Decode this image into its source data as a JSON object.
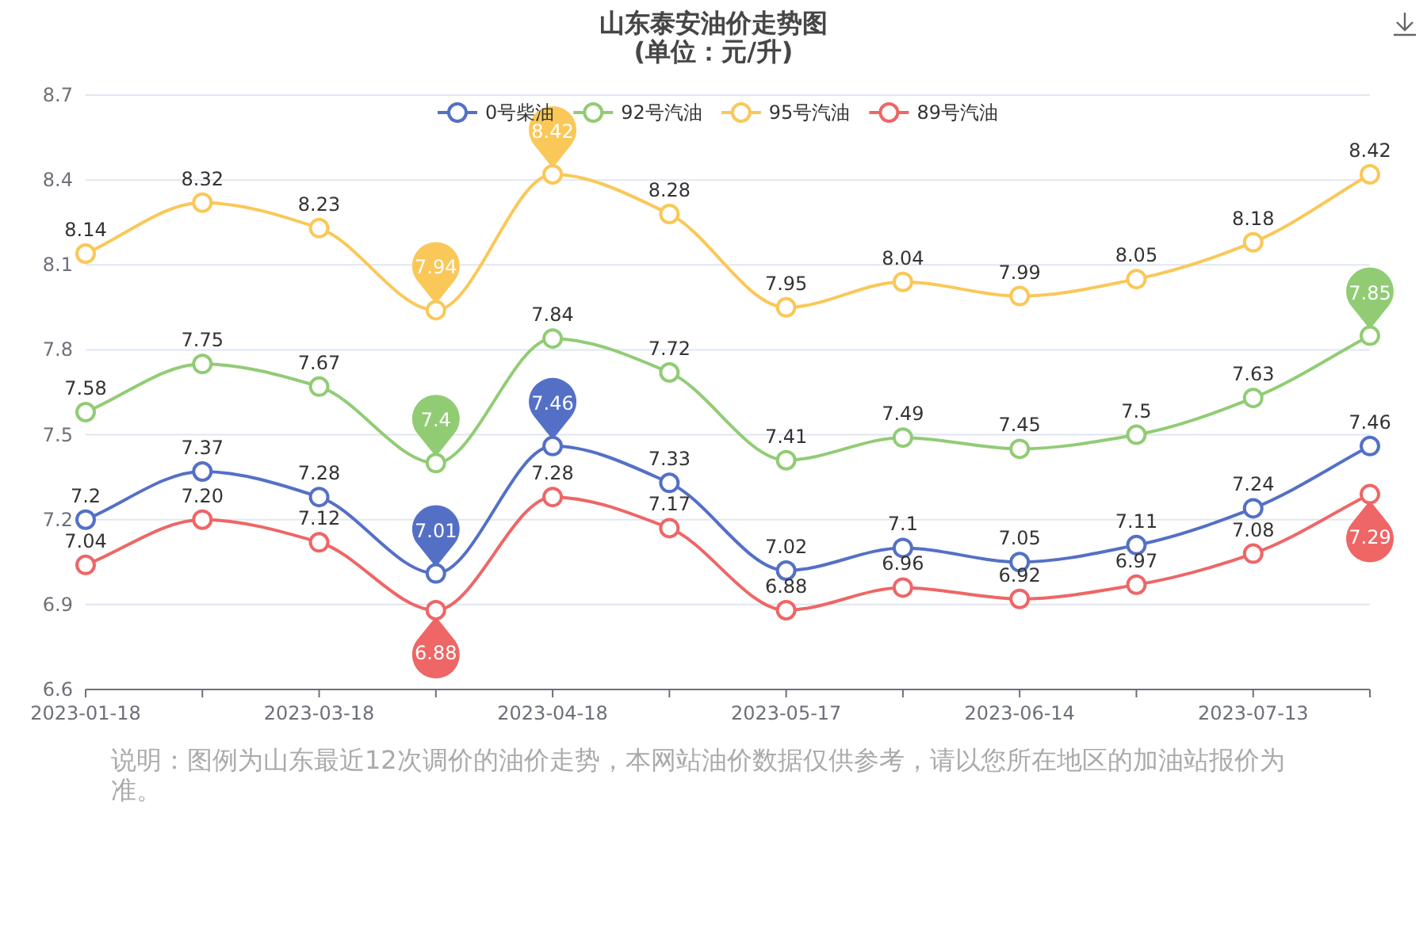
{
  "chart_data": {
    "type": "line",
    "title": "山东泰安油价走势图",
    "subtitle": "(单位：元/升)",
    "categories": [
      "2023-01-18",
      null,
      "2023-03-18",
      null,
      "2023-04-18",
      null,
      "2023-05-17",
      null,
      "2023-06-14",
      null,
      "2023-07-13",
      null
    ],
    "series": [
      {
        "name": "0号柴油",
        "color": "#5470c6",
        "values": [
          7.2,
          7.37,
          7.28,
          7.01,
          7.46,
          7.33,
          7.02,
          7.1,
          7.05,
          7.11,
          7.24,
          7.46
        ],
        "value_labels": [
          "7.2",
          "7.37",
          "7.28",
          null,
          null,
          "7.33",
          "7.02",
          "7.1",
          "7.05",
          "7.11",
          "7.24",
          "7.46"
        ]
      },
      {
        "name": "92号汽油",
        "color": "#91cc75",
        "values": [
          7.58,
          7.75,
          7.67,
          7.4,
          7.84,
          7.72,
          7.41,
          7.49,
          7.45,
          7.5,
          7.63,
          7.85
        ],
        "value_labels": [
          "7.58",
          "7.75",
          "7.67",
          null,
          "7.84",
          "7.72",
          "7.41",
          "7.49",
          "7.45",
          "7.5",
          "7.63",
          null
        ]
      },
      {
        "name": "95号汽油",
        "color": "#fac858",
        "values": [
          8.14,
          8.32,
          8.23,
          7.94,
          8.42,
          8.28,
          7.95,
          8.04,
          7.99,
          8.05,
          8.18,
          8.42
        ],
        "value_labels": [
          "8.14",
          "8.32",
          "8.23",
          null,
          null,
          "8.28",
          "7.95",
          "8.04",
          "7.99",
          "8.05",
          "8.18",
          "8.42"
        ]
      },
      {
        "name": "89号汽油",
        "color": "#ee6666",
        "values": [
          7.04,
          7.2,
          7.12,
          6.88,
          7.28,
          7.17,
          6.88,
          6.96,
          6.92,
          6.97,
          7.08,
          7.29
        ],
        "value_labels": [
          "7.04",
          "7.20",
          "7.12",
          null,
          "7.28",
          "7.17",
          "6.88",
          "6.96",
          "6.92",
          "6.97",
          "7.08",
          null
        ]
      }
    ],
    "ylim": [
      6.6,
      8.7
    ],
    "yticks": [
      6.6,
      6.9,
      7.2,
      7.5,
      7.8,
      8.1,
      8.4,
      8.7
    ],
    "grid": "y",
    "legend": "top",
    "marker": "circle",
    "line_style": "solid",
    "annotations": [
      {
        "text": "8.42",
        "x": "2023-04-18",
        "y": 8.42
      },
      {
        "text": "7.94",
        "y": 7.94
      },
      {
        "text": "7.85",
        "y": 7.85
      },
      {
        "text": "7.4",
        "y": 7.4
      },
      {
        "text": "7.46",
        "x": "2023-04-18",
        "y": 7.46
      },
      {
        "text": "7.01",
        "y": 7.01
      },
      {
        "text": "7.29",
        "y": 7.29
      },
      {
        "text": "6.88",
        "y": 6.88
      },
      "说明：图例为山东最近12次调价的油价走势，本网站油价数据仅供参考，请以您所在地区的加油站报价为准。"
    ]
  }
}
